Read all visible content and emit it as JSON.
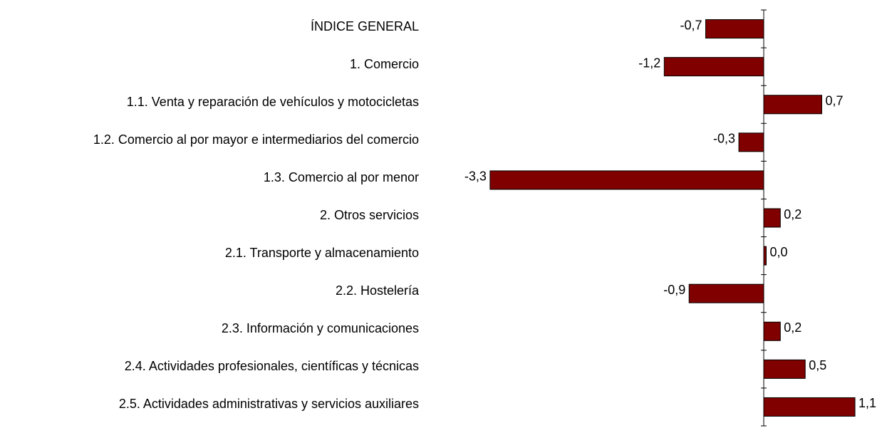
{
  "chart_data": {
    "type": "hbar",
    "categories": [
      "ÍNDICE GENERAL",
      "1. Comercio",
      "1.1. Venta y reparación de vehículos y motocicletas",
      "1.2. Comercio al por mayor e intermediarios del comercio",
      "1.3. Comercio al por menor",
      "2. Otros servicios",
      "2.1. Transporte y almacenamiento",
      "2.2. Hostelería",
      "2.3. Información y comunicaciones",
      "2.4. Actividades profesionales, científicas y técnicas",
      "2.5. Actividades administrativas y servicios auxiliares"
    ],
    "values": [
      -0.7,
      -1.2,
      0.7,
      -0.3,
      -3.3,
      0.2,
      0.03,
      -0.9,
      0.2,
      0.5,
      1.1
    ],
    "value_labels": [
      "-0,7",
      "-1,2",
      "0,7",
      "-0,3",
      "-3,3",
      "0,2",
      "0,0",
      "-0,9",
      "0,2",
      "0,5",
      "1,1"
    ],
    "color": "#800000",
    "xlim": [
      -3.5,
      1.3
    ]
  }
}
